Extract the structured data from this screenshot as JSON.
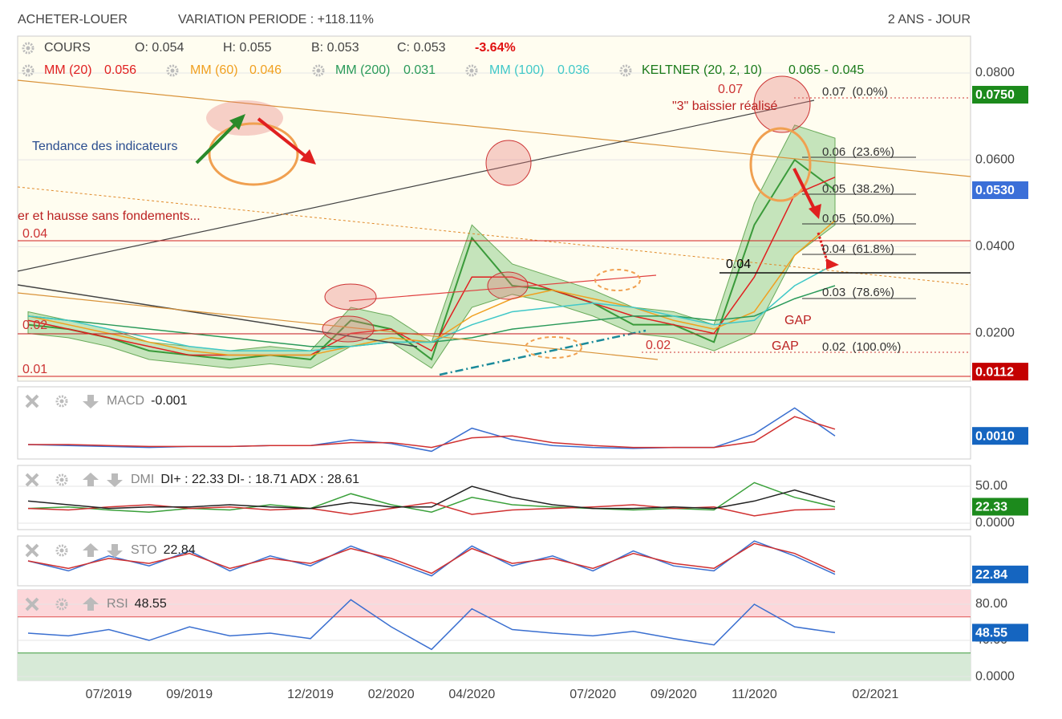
{
  "chart_data": [
    {
      "type": "line",
      "title": "ACHETER-LOUER",
      "subtitle": "VARIATION PERIODE : +118.11%",
      "period": "2 ANS - JOUR",
      "ohlc": [
        "O: 0.054",
        "H: 0.055",
        "B: 0.053",
        "C: 0.053"
      ],
      "change": "-3.64%",
      "categories": [
        null,
        null,
        "07/2019",
        null,
        "09/2019",
        null,
        null,
        "12/2019",
        null,
        "02/2020",
        null,
        "04/2020",
        null,
        null,
        "07/2020",
        null,
        "09/2020",
        null,
        "11/2020",
        null,
        null,
        "02/2021"
      ],
      "ylim": [
        0.009,
        0.0885
      ],
      "yticks": [
        {
          "value": 0.08,
          "label": "0.0800"
        },
        {
          "value": 0.06,
          "label": "0.0600"
        },
        {
          "value": 0.04,
          "label": "0.0400"
        },
        {
          "value": 0.02,
          "label": "0.0200"
        }
      ],
      "tags": [
        {
          "value": 0.075,
          "label": "0.0750"
        },
        {
          "value": 0.053,
          "label": "0.0530"
        },
        {
          "value": 0.0112,
          "label": "0.0112"
        }
      ],
      "tag_colors": [
        "#1c8a1c",
        "#3b6fd8",
        "#c40000"
      ],
      "band": {
        "name": "KELTNER (20, 2, 10)",
        "legend_value": "0.065 - 0.045",
        "color": "#1a7a1a",
        "upper": [
          0.025,
          0.023,
          0.021,
          0.018,
          0.017,
          0.016,
          0.017,
          0.016,
          0.026,
          0.024,
          0.018,
          0.045,
          0.036,
          0.033,
          0.03,
          0.026,
          0.025,
          0.022,
          0.05,
          0.068,
          0.065,
          null
        ],
        "lower": [
          0.02,
          0.019,
          0.017,
          0.014,
          0.013,
          0.012,
          0.013,
          0.012,
          0.017,
          0.018,
          0.012,
          0.026,
          0.029,
          0.027,
          0.024,
          0.02,
          0.019,
          0.016,
          0.02,
          0.038,
          0.045,
          null
        ]
      },
      "series": [
        {
          "name": "COURS",
          "color": "#3a9a3a",
          "values": [
            0.022,
            0.021,
            0.019,
            0.016,
            0.015,
            0.014,
            0.015,
            0.014,
            0.023,
            0.021,
            0.014,
            0.042,
            0.031,
            0.03,
            0.027,
            0.022,
            0.022,
            0.018,
            0.045,
            0.06,
            0.053,
            null
          ]
        },
        {
          "name": "MM (20)",
          "legend_value": 0.056,
          "color": "#e02020",
          "values": [
            0.023,
            0.021,
            0.019,
            0.017,
            0.015,
            0.015,
            0.015,
            0.015,
            0.02,
            0.021,
            0.016,
            0.033,
            0.033,
            0.03,
            0.027,
            0.024,
            0.022,
            0.02,
            0.033,
            0.052,
            0.056,
            null
          ]
        },
        {
          "name": "MM (60)",
          "legend_value": 0.046,
          "color": "#f0a020",
          "values": [
            0.024,
            0.022,
            0.02,
            0.018,
            0.016,
            0.015,
            0.015,
            0.015,
            0.017,
            0.019,
            0.018,
            0.024,
            0.028,
            0.03,
            0.028,
            0.026,
            0.023,
            0.021,
            0.025,
            0.038,
            0.046,
            null
          ]
        },
        {
          "name": "MM (200)",
          "legend_value": 0.031,
          "color": "#2a9a5a",
          "values": [
            0.024,
            0.023,
            0.022,
            0.021,
            0.02,
            0.019,
            0.018,
            0.017,
            0.017,
            0.018,
            0.018,
            0.019,
            0.021,
            0.022,
            0.023,
            0.024,
            0.024,
            0.023,
            0.024,
            0.028,
            0.031,
            null
          ]
        },
        {
          "name": "MM (100)",
          "legend_value": 0.036,
          "color": "#40c8c8",
          "values": [
            0.024,
            0.023,
            0.021,
            0.019,
            0.017,
            0.016,
            0.016,
            0.016,
            0.017,
            0.018,
            0.018,
            0.022,
            0.025,
            0.026,
            0.027,
            0.026,
            0.024,
            0.022,
            0.023,
            0.031,
            0.036,
            null
          ]
        }
      ],
      "annotations": [
        "Tendance des indicateurs",
        "er et hausse sans fondements...",
        "0.04",
        "0.02",
        "0.01",
        "0.07",
        "\"3\" baissier réalisé",
        "0.07  (0.0%)",
        "0.06  (23.6%)",
        "0.05  (38.2%)",
        "0.05  (50.0%)",
        "0.04  (61.8%)",
        "0.04",
        "0.03  (78.6%)",
        "0.02  (100.0%)",
        "0.02",
        "GAP",
        "GAP"
      ]
    },
    {
      "type": "line",
      "title": "MACD",
      "readout": "-0.001",
      "ylim": [
        -0.0014,
        0.0061
      ],
      "tags": [
        {
          "value": 0.001,
          "label": "0.0010"
        }
      ],
      "tag_colors": [
        "#1565c0"
      ],
      "series": [
        {
          "color": "#3a6fd0",
          "values": [
            0.0001,
            0,
            -0.0001,
            -0.0002,
            -0.0001,
            -0.0001,
            0,
            0,
            0.0006,
            0.0002,
            -0.0006,
            0.0018,
            0.0006,
            0,
            -0.0002,
            -0.0003,
            -0.0002,
            -0.0002,
            0.0012,
            0.0039,
            0.001,
            null
          ]
        },
        {
          "color": "#d03030",
          "values": [
            0.0001,
            0.0001,
            0,
            -0.0001,
            -0.0001,
            -0.0001,
            0,
            0,
            0.0003,
            0.0003,
            -0.0002,
            0.0008,
            0.001,
            0.0003,
            0,
            -0.0002,
            -0.0002,
            -0.0002,
            0.0004,
            0.003,
            0.0017,
            null
          ]
        }
      ]
    },
    {
      "type": "line",
      "title": "DMI",
      "readout": "DI+ : 22.33 DI- : 18.71 ADX : 28.61",
      "ylim": [
        -8.7,
        78.3
      ],
      "yticks": [
        {
          "value": 50,
          "label": "50.00"
        },
        {
          "value": 0,
          "label": "0.0000"
        }
      ],
      "tags": [
        22.33
      ],
      "tag_colors": [
        "#1c8a1c"
      ],
      "series": [
        {
          "color": "#3aa03a",
          "values": [
            20,
            22,
            18,
            15,
            20,
            18,
            25,
            20,
            40,
            25,
            15,
            35,
            25,
            22,
            20,
            18,
            20,
            18,
            55,
            35,
            22,
            null
          ]
        },
        {
          "color": "#d03030",
          "values": [
            20,
            18,
            22,
            25,
            20,
            22,
            18,
            20,
            12,
            20,
            28,
            12,
            18,
            20,
            22,
            25,
            20,
            22,
            10,
            18,
            19,
            null
          ]
        },
        {
          "color": "#222222",
          "values": [
            30,
            25,
            20,
            22,
            22,
            25,
            22,
            20,
            28,
            22,
            22,
            50,
            35,
            25,
            20,
            20,
            22,
            20,
            30,
            45,
            29,
            null
          ]
        }
      ]
    },
    {
      "type": "line",
      "title": "STO",
      "readout": "22.84",
      "ylim": [
        0,
        100
      ],
      "tags": [
        22.84
      ],
      "tag_colors": [
        "#1565c0"
      ],
      "series": [
        {
          "color": "#3a6fd0",
          "values": [
            50,
            30,
            60,
            40,
            70,
            30,
            60,
            40,
            80,
            50,
            20,
            80,
            40,
            60,
            30,
            70,
            40,
            30,
            90,
            60,
            23,
            null
          ]
        },
        {
          "color": "#d03030",
          "values": [
            50,
            35,
            55,
            45,
            65,
            35,
            55,
            45,
            75,
            55,
            25,
            75,
            45,
            55,
            35,
            65,
            45,
            35,
            85,
            65,
            28,
            null
          ]
        }
      ]
    },
    {
      "type": "line",
      "title": "RSI",
      "readout": "48.55",
      "ylim": [
        -4.4,
        96
      ],
      "levels": [
        26,
        66
      ],
      "yticks": [
        {
          "value": 80,
          "label": "80.00"
        },
        {
          "value": 40,
          "label": "40.00"
        },
        {
          "value": 0,
          "label": "0.0000"
        }
      ],
      "tags": [
        48.55
      ],
      "tag_colors": [
        "#1565c0"
      ],
      "series": [
        {
          "color": "#3a6fd0",
          "values": [
            48,
            45,
            52,
            40,
            55,
            45,
            48,
            42,
            85,
            55,
            30,
            75,
            52,
            48,
            45,
            50,
            42,
            35,
            80,
            55,
            48.55,
            null
          ]
        }
      ]
    }
  ]
}
